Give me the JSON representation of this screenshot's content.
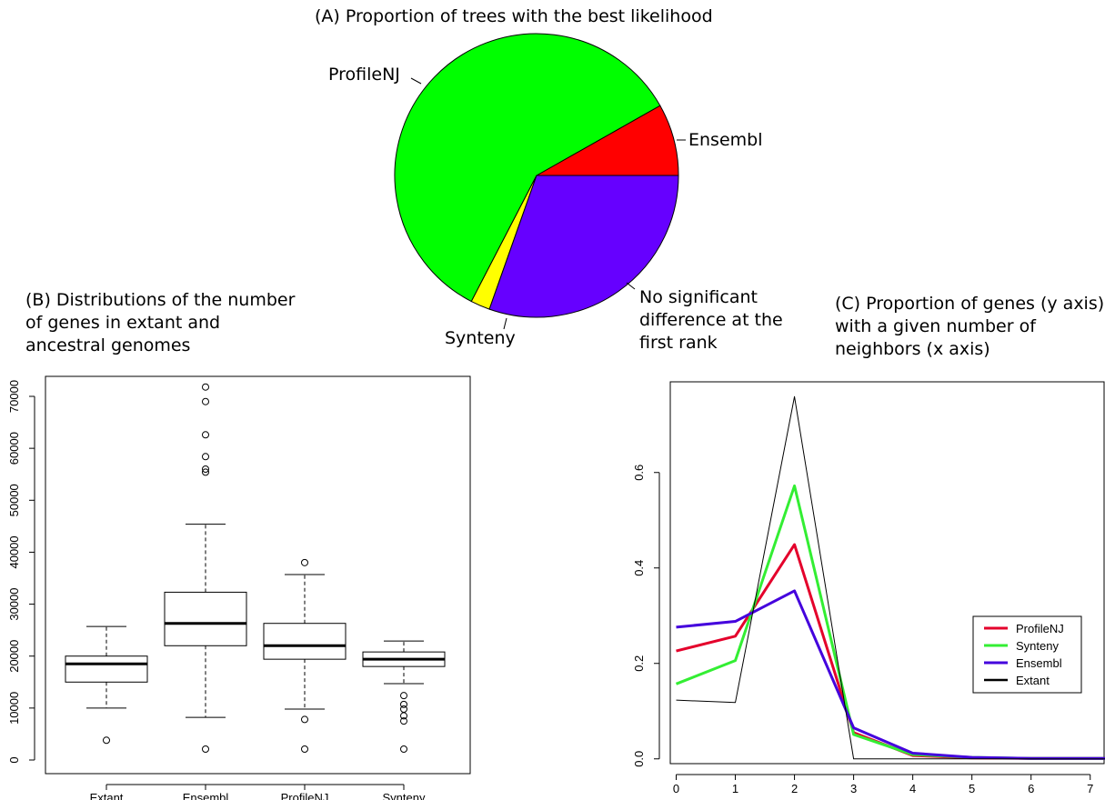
{
  "chart_data": [
    {
      "type": "pie",
      "title": "(A) Proportion of trees with the best likelihood",
      "slices": [
        {
          "label": "Ensembl",
          "value": 0.082,
          "color": "#ff0000"
        },
        {
          "label": "ProfileNJ",
          "value": 0.592,
          "color": "#00ff00"
        },
        {
          "label": "Synteny",
          "value": 0.022,
          "color": "#ffff00"
        },
        {
          "label": "No significant difference at the first rank",
          "value": 0.304,
          "color": "#6600ff"
        }
      ]
    },
    {
      "type": "box",
      "title": "(B) Distributions of the number of genes in extant and ancestral genomes",
      "categories": [
        "Extant",
        "Ensembl",
        "ProfileNJ",
        "Synteny"
      ],
      "y_ticks": [
        "0",
        "10000",
        "20000",
        "30000",
        "40000",
        "50000",
        "60000",
        "70000"
      ],
      "ylim": [
        0,
        72000
      ],
      "boxes": [
        {
          "name": "Extant",
          "whisker_low": 10000,
          "q1": 15000,
          "median": 18500,
          "q3": 20000,
          "whisker_high": 25700,
          "outliers": [
            3800
          ]
        },
        {
          "name": "Ensembl",
          "whisker_low": 8200,
          "q1": 22000,
          "median": 26300,
          "q3": 32300,
          "whisker_high": 45400,
          "outliers": [
            2100,
            55400,
            56000,
            58400,
            62600,
            69000,
            71800
          ]
        },
        {
          "name": "ProfileNJ",
          "whisker_low": 9800,
          "q1": 19400,
          "median": 22000,
          "q3": 26300,
          "whisker_high": 35700,
          "outliers": [
            2100,
            7800,
            38000
          ]
        },
        {
          "name": "Synteny",
          "whisker_low": 14700,
          "q1": 18000,
          "median": 19400,
          "q3": 20800,
          "whisker_high": 22900,
          "outliers": [
            2100,
            7500,
            8500,
            9800,
            10700,
            12400
          ]
        }
      ]
    },
    {
      "type": "line",
      "title": "(C) Proportion of genes (y axis) with a given number of neighbors (x axis)",
      "x": [
        0,
        1,
        2,
        3,
        4,
        5,
        6,
        7,
        7.25
      ],
      "x_ticks": [
        "0",
        "1",
        "2",
        "3",
        "4",
        "5",
        "6",
        "7"
      ],
      "y_ticks": [
        "0.0",
        "0.2",
        "0.4",
        "0.6"
      ],
      "xlim": [
        -0.1,
        7.25
      ],
      "ylim": [
        -0.01,
        0.79
      ],
      "series": [
        {
          "name": "ProfileNJ",
          "color": "#e4002b",
          "values": [
            0.226,
            0.257,
            0.449,
            0.055,
            0.007,
            0.002,
            0.001,
            0.001,
            0.001
          ]
        },
        {
          "name": "Synteny",
          "color": "#33ee33",
          "values": [
            0.157,
            0.206,
            0.572,
            0.051,
            0.009,
            0.003,
            0.001,
            0.001,
            0.001
          ]
        },
        {
          "name": "Ensembl",
          "color": "#4400dd",
          "values": [
            0.276,
            0.288,
            0.352,
            0.065,
            0.012,
            0.003,
            0.001,
            0.001,
            0.001
          ]
        },
        {
          "name": "Extant",
          "color": "#000000",
          "values": [
            0.123,
            0.118,
            0.759,
            0.0,
            0.0,
            0.0,
            0.0,
            0.0,
            0.0
          ]
        }
      ],
      "legend": [
        "ProfileNJ",
        "Synteny",
        "Ensembl",
        "Extant"
      ],
      "legend_position": "right"
    }
  ]
}
